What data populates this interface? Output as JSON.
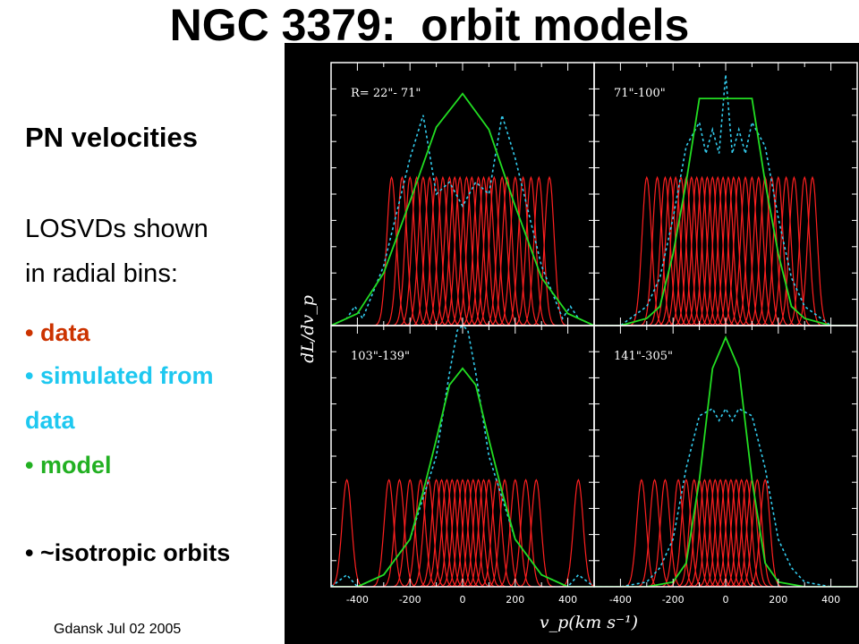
{
  "slide": {
    "title": "NGC 3379:  orbit models",
    "subheading": "PN velocities",
    "intro_line1": "LOSVDs shown",
    "intro_line2": "in radial bins:",
    "bullets": [
      {
        "text": "• data",
        "color": "#cc3300"
      },
      {
        "text": "• simulated from",
        "color": "#1ec8f0"
      },
      {
        "text": "data",
        "color": "#1ec8f0"
      },
      {
        "text": "• model",
        "color": "#22b022"
      },
      {
        "text": "• ~isotropic orbits",
        "color": "#000000"
      }
    ],
    "footer": "Gdansk Jul 02 2005"
  },
  "colors": {
    "background": "#000000",
    "frame": "#ffffff",
    "data": "#ff2020",
    "simulated": "#33ccee",
    "model": "#22dd22"
  },
  "chart_data": {
    "type": "line",
    "ylabel": "dL/dv_p",
    "xlabel": "v_p(km s⁻¹)",
    "xlim": [
      -500,
      500
    ],
    "x_ticks": [
      -400,
      -200,
      0,
      200,
      400
    ],
    "x_tick_labels": [
      "-400",
      "-200",
      "0",
      "200",
      "400"
    ],
    "ylim": [
      0,
      1.1
    ],
    "legend": "none (described in slide text)",
    "panels": [
      {
        "label": "R= 22\"- 71\"",
        "data_velocities": [
          -270,
          -230,
          -200,
          -175,
          -150,
          -125,
          -100,
          -75,
          -50,
          -30,
          -10,
          15,
          35,
          60,
          80,
          100,
          120,
          150,
          170,
          200,
          230,
          260,
          290,
          330
        ],
        "data_sigma": 18,
        "data_peak": 0.62,
        "model": {
          "x": [
            -500,
            -400,
            -300,
            -200,
            -100,
            0,
            100,
            200,
            300,
            400,
            500
          ],
          "y": [
            0.0,
            0.05,
            0.22,
            0.52,
            0.83,
            0.97,
            0.82,
            0.5,
            0.2,
            0.05,
            0.0
          ]
        },
        "simulated": {
          "x": [
            -500,
            -440,
            -410,
            -380,
            -300,
            -200,
            -150,
            -100,
            -50,
            0,
            50,
            100,
            150,
            200,
            300,
            380,
            410,
            440,
            500
          ],
          "y": [
            0.0,
            0.03,
            0.08,
            0.03,
            0.25,
            0.7,
            0.88,
            0.55,
            0.6,
            0.5,
            0.6,
            0.55,
            0.88,
            0.7,
            0.25,
            0.03,
            0.08,
            0.03,
            0.0
          ]
        }
      },
      {
        "label": "71\"-100\"",
        "data_velocities": [
          -300,
          -260,
          -230,
          -210,
          -190,
          -170,
          -150,
          -130,
          -110,
          -90,
          -70,
          -50,
          -30,
          -10,
          10,
          30,
          50,
          75,
          100,
          125,
          150,
          175,
          200,
          230,
          260,
          300,
          330
        ],
        "data_sigma": 18,
        "data_peak": 0.62,
        "model": {
          "x": [
            -500,
            -400,
            -300,
            -250,
            -200,
            -150,
            -100,
            -50,
            0,
            50,
            100,
            150,
            200,
            250,
            300,
            400,
            500
          ],
          "y": [
            0.0,
            0.0,
            0.03,
            0.08,
            0.3,
            0.6,
            0.95,
            0.95,
            0.95,
            0.95,
            0.95,
            0.6,
            0.3,
            0.08,
            0.03,
            0.0,
            0.0
          ]
        },
        "simulated": {
          "x": [
            -500,
            -400,
            -300,
            -250,
            -200,
            -150,
            -100,
            -75,
            -50,
            -25,
            0,
            25,
            50,
            75,
            100,
            150,
            200,
            250,
            300,
            400,
            500
          ],
          "y": [
            0.0,
            0.0,
            0.08,
            0.2,
            0.45,
            0.75,
            0.85,
            0.72,
            0.82,
            0.72,
            1.05,
            0.72,
            0.82,
            0.72,
            0.85,
            0.75,
            0.45,
            0.2,
            0.08,
            0.0,
            0.0
          ]
        }
      },
      {
        "label": "103\"-139\"",
        "data_velocities": [
          -440,
          -280,
          -240,
          -200,
          -160,
          -130,
          -100,
          -80,
          -60,
          -40,
          -20,
          0,
          20,
          40,
          60,
          80,
          100,
          130,
          160,
          200,
          240,
          280,
          440
        ],
        "data_sigma": 18,
        "data_peak": 0.45,
        "model": {
          "x": [
            -500,
            -400,
            -300,
            -200,
            -150,
            -100,
            -50,
            0,
            50,
            100,
            150,
            200,
            300,
            400,
            500
          ],
          "y": [
            0.0,
            0.0,
            0.05,
            0.2,
            0.4,
            0.62,
            0.85,
            0.92,
            0.85,
            0.62,
            0.4,
            0.2,
            0.05,
            0.0,
            0.0
          ]
        },
        "simulated": {
          "x": [
            -500,
            -440,
            -400,
            -300,
            -200,
            -100,
            -50,
            -20,
            0,
            20,
            50,
            100,
            200,
            300,
            400,
            440,
            500
          ],
          "y": [
            0.0,
            0.05,
            0.0,
            0.05,
            0.2,
            0.55,
            0.9,
            1.08,
            1.1,
            1.08,
            0.9,
            0.55,
            0.2,
            0.05,
            0.0,
            0.05,
            0.0
          ]
        }
      },
      {
        "label": "141\"-305\"",
        "data_velocities": [
          -320,
          -270,
          -230,
          -180,
          -150,
          -120,
          -100,
          -80,
          -60,
          -40,
          -20,
          0,
          20,
          40,
          60,
          80,
          100,
          120,
          150
        ],
        "data_sigma": 18,
        "data_peak": 0.45,
        "model": {
          "x": [
            -500,
            -400,
            -300,
            -200,
            -150,
            -100,
            -50,
            0,
            50,
            100,
            150,
            200,
            300,
            400,
            500
          ],
          "y": [
            0.0,
            0.0,
            0.0,
            0.02,
            0.1,
            0.45,
            0.92,
            1.05,
            0.92,
            0.45,
            0.1,
            0.02,
            0.0,
            0.0,
            0.0
          ]
        },
        "simulated": {
          "x": [
            -500,
            -400,
            -300,
            -250,
            -200,
            -150,
            -100,
            -50,
            -25,
            0,
            25,
            50,
            100,
            150,
            200,
            250,
            300,
            400,
            500
          ],
          "y": [
            0.0,
            0.0,
            0.02,
            0.08,
            0.2,
            0.5,
            0.72,
            0.75,
            0.7,
            0.75,
            0.7,
            0.75,
            0.72,
            0.5,
            0.2,
            0.08,
            0.02,
            0.0,
            0.0
          ]
        }
      }
    ]
  }
}
